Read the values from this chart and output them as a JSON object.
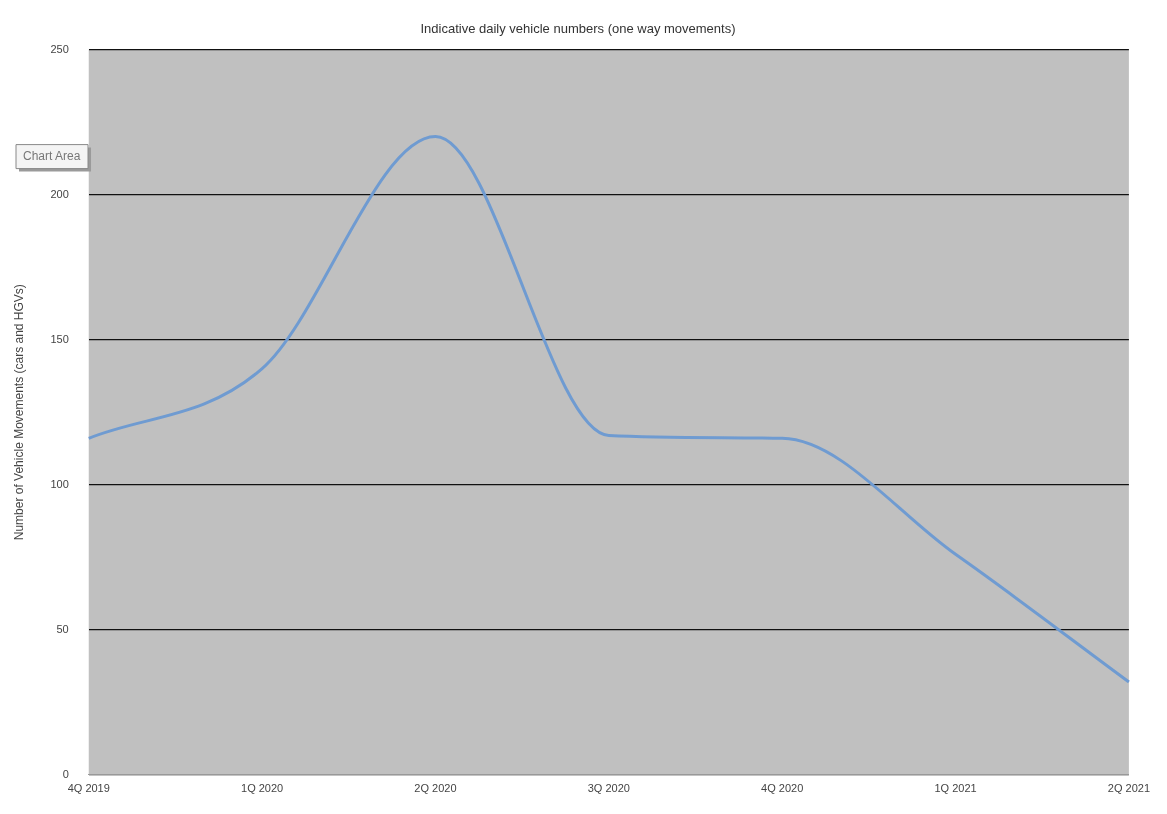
{
  "chart_data": {
    "type": "line",
    "title": "Indicative daily vehicle numbers (one way movements)",
    "ylabel": "Number of Vehicle Movements (cars and HGVs)",
    "categories": [
      "4Q 2019",
      "1Q 2020",
      "2Q 2020",
      "3Q 2020",
      "4Q 2020",
      "1Q 2021",
      "2Q 2021"
    ],
    "series": [
      {
        "color": "#6f9bd1",
        "values": [
          116,
          140,
          220,
          117,
          116,
          76,
          32
        ]
      }
    ],
    "ylim": [
      0,
      250
    ],
    "yticks": [
      0,
      50,
      100,
      150,
      200,
      250
    ],
    "grid": "y",
    "legend": false,
    "marker": "none",
    "annotations": [
      "Chart Area"
    ]
  }
}
